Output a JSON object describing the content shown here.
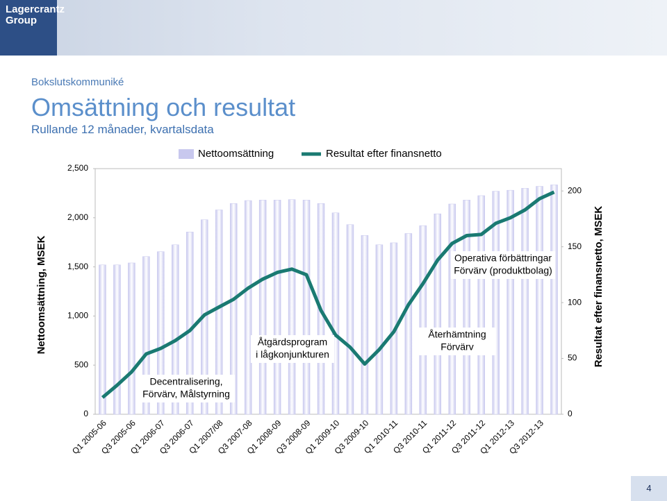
{
  "header": {
    "logo": [
      "Lagercrantz",
      "Group"
    ],
    "section": "Bokslutskommuniké",
    "title": "Omsättning och resultat",
    "subtitle": "Rullande 12 månader, kvartalsdata"
  },
  "chart_data": {
    "type": "bar",
    "categories": [
      "Q1 2005-06",
      null,
      "Q3 2005-06",
      null,
      "Q1 2006-07",
      null,
      "Q3 2006-07",
      null,
      "Q1 2007/08",
      null,
      "Q3 2007-08",
      null,
      "Q1 2008-09",
      null,
      "Q3 2008-09",
      null,
      "Q1 2009-10",
      null,
      "Q3 2009-10",
      null,
      "Q1 2010-11",
      null,
      "Q3 2010-11",
      null,
      "Q1 2011-12",
      null,
      "Q3 2011-12",
      null,
      "Q1 2012-13",
      null,
      "Q3 2012-13",
      null
    ],
    "series": [
      {
        "name": "Nettoomsättning",
        "type": "bar",
        "color": "#c8c8ee",
        "values": [
          1520,
          1520,
          1540,
          1605,
          1655,
          1725,
          1855,
          1980,
          2080,
          2145,
          2175,
          2180,
          2180,
          2185,
          2180,
          2145,
          2050,
          1930,
          1820,
          1725,
          1745,
          1840,
          1920,
          2040,
          2140,
          2180,
          2225,
          2270,
          2280,
          2300,
          2320,
          2335
        ]
      },
      {
        "name": "Resultat efter finansnetto",
        "type": "line",
        "axis": "y2",
        "color": "#1a7a72",
        "values": [
          15,
          26,
          38,
          54,
          59,
          66,
          75,
          89,
          96,
          103,
          113,
          121,
          127,
          130,
          125,
          93,
          71,
          60,
          45,
          58,
          74,
          98,
          117,
          138,
          153,
          160,
          161,
          171,
          176,
          183,
          193,
          199
        ]
      }
    ],
    "ylabel": "Nettoomsättning, MSEK",
    "y2label": "Resultat efter finansnetto, MSEK",
    "ylim": [
      0,
      2500
    ],
    "yticks": [
      0,
      500,
      {
        "value": 1000,
        "label": "1,000"
      },
      {
        "value": 1500,
        "label": "1,500"
      },
      {
        "value": 2000,
        "label": "2,000"
      },
      {
        "value": 2500,
        "label": "2,500"
      }
    ],
    "y2lim": [
      0,
      220
    ],
    "y2ticks": [
      0,
      50,
      100,
      150,
      200
    ],
    "annotations": [
      [
        "Decentralisering,",
        "Förvärv, Målstyrning"
      ],
      [
        "Åtgärdsprogram",
        "i lågkonjunkturen"
      ],
      [
        "Återhämtning",
        "Förvärv"
      ],
      [
        "Operativa förbättringar",
        "Förvärv (produktbolag)"
      ]
    ]
  },
  "page_number": "4"
}
